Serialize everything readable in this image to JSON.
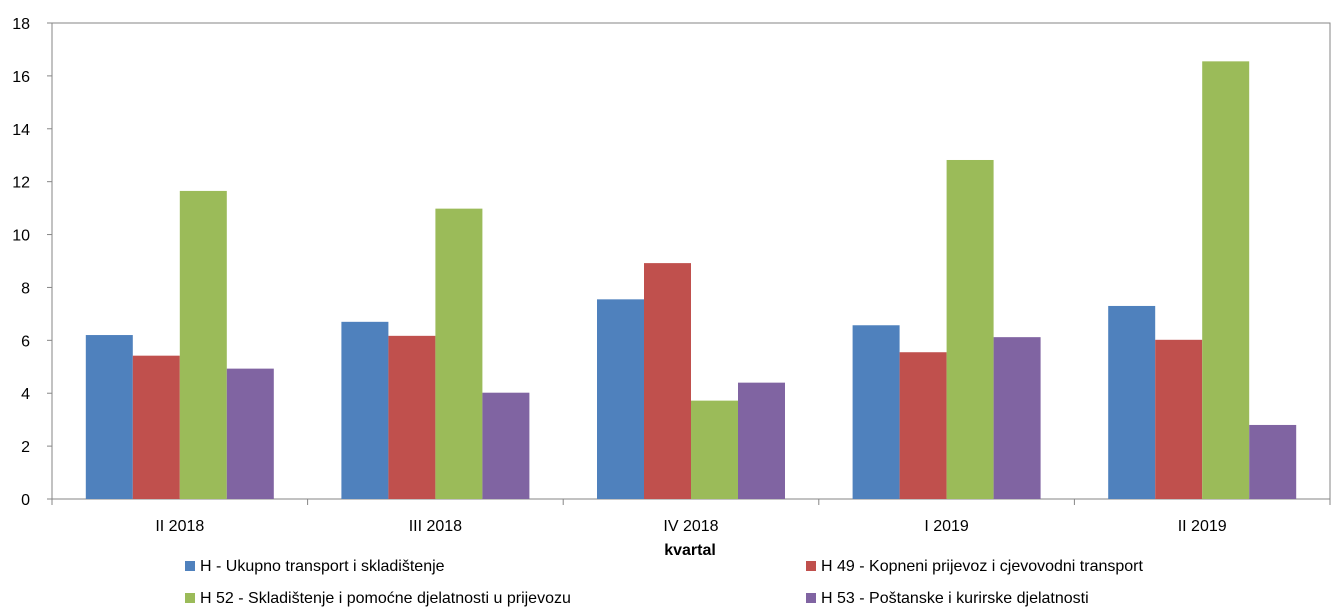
{
  "chart_data": {
    "type": "bar",
    "categories": [
      "II 2018",
      "III 2018",
      "IV 2018",
      "I 2019",
      "II 2019"
    ],
    "series": [
      {
        "name": "H - Ukupno transport i skladištenje",
        "color": "#4F81BD",
        "values": [
          6.2,
          6.7,
          7.55,
          6.57,
          7.3
        ]
      },
      {
        "name": "H 49 - Kopneni prijevoz i cjevovodni transport",
        "color": "#C0504D",
        "values": [
          5.42,
          6.17,
          8.92,
          5.55,
          6.02
        ]
      },
      {
        "name": "H 52 - Skladištenje i pomoćne djelatnosti u prijevozu",
        "color": "#9BBB59",
        "values": [
          11.65,
          10.98,
          3.72,
          12.82,
          16.55
        ]
      },
      {
        "name": "H 53 - Poštanske i kurirske djelatnosti",
        "color": "#8064A2",
        "values": [
          4.93,
          4.02,
          4.4,
          6.12,
          2.8
        ]
      }
    ],
    "xlabel": "kvartal",
    "ylabel": "",
    "ylim": [
      0,
      18
    ],
    "yticks": [
      "0",
      "2",
      "4",
      "6",
      "8",
      "10",
      "12",
      "14",
      "16",
      "18"
    ],
    "grid": false,
    "legend": "bottom"
  }
}
